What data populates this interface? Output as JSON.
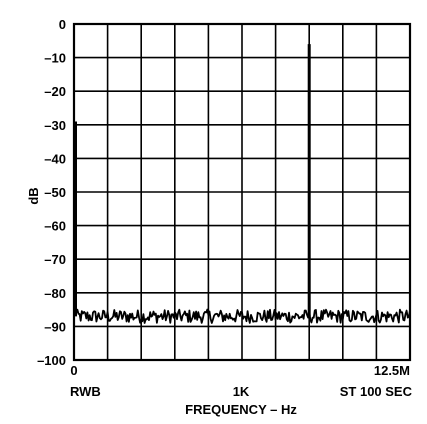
{
  "chart_data": {
    "type": "line",
    "title": "",
    "xlabel": "FREQUENCY – Hz",
    "ylabel": "dB",
    "ylim": [
      -100,
      0
    ],
    "y_ticks": [
      0,
      -10,
      -20,
      -30,
      -40,
      -50,
      -60,
      -70,
      -80,
      -90,
      -100
    ],
    "y_tick_labels": [
      "0",
      "–10",
      "–20",
      "–30",
      "–40",
      "–50",
      "–60",
      "–70",
      "–80",
      "–90",
      "–100"
    ],
    "x_tick_labels": {
      "left": "0",
      "right": "12.5M"
    },
    "x_bottom_labels": {
      "left": "RWB",
      "center": "1K",
      "right": "ST 100 SEC"
    },
    "grid": true,
    "grid_divisions": {
      "x": 10,
      "y": 10
    },
    "series": [
      {
        "noise_floor_db": -87,
        "noise_floor_range_db": [
          -89,
          -85
        ],
        "x_range_divisions": [
          0,
          10
        ],
        "spikes": [
          {
            "x_division": 0.0,
            "db": -29
          },
          {
            "x_division": 7.0,
            "db": -6
          }
        ]
      }
    ]
  }
}
